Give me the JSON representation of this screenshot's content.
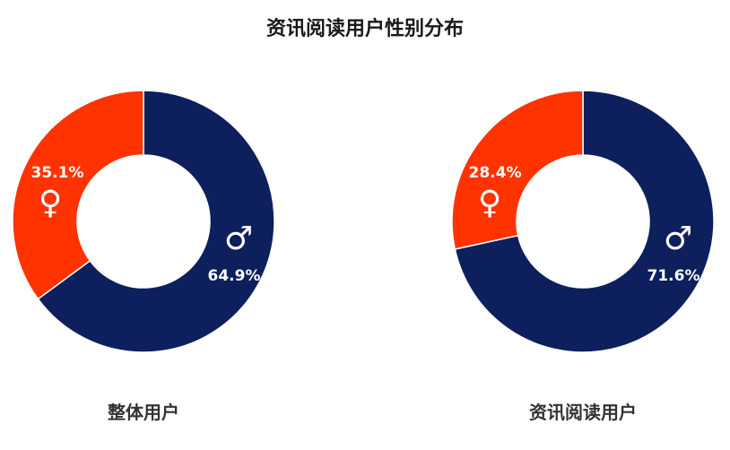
{
  "title": "资讯阅读用户性别分布",
  "colors": {
    "male": "#0d1f5c",
    "female": "#ff3300",
    "text_on_slice": "#ffffff"
  },
  "chart_data": [
    {
      "type": "pie",
      "subtitle": "整体用户",
      "slices": [
        {
          "label": "male",
          "icon": "male-symbol-icon",
          "glyph": "♂",
          "value": 64.9,
          "display": "64.9%"
        },
        {
          "label": "female",
          "icon": "female-symbol-icon",
          "glyph": "♀",
          "value": 35.1,
          "display": "35.1%"
        }
      ]
    },
    {
      "type": "pie",
      "subtitle": "资讯阅读用户",
      "slices": [
        {
          "label": "male",
          "icon": "male-symbol-icon",
          "glyph": "♂",
          "value": 71.6,
          "display": "71.6%"
        },
        {
          "label": "female",
          "icon": "female-symbol-icon",
          "glyph": "♀",
          "value": 28.4,
          "display": "28.4%"
        }
      ]
    }
  ]
}
